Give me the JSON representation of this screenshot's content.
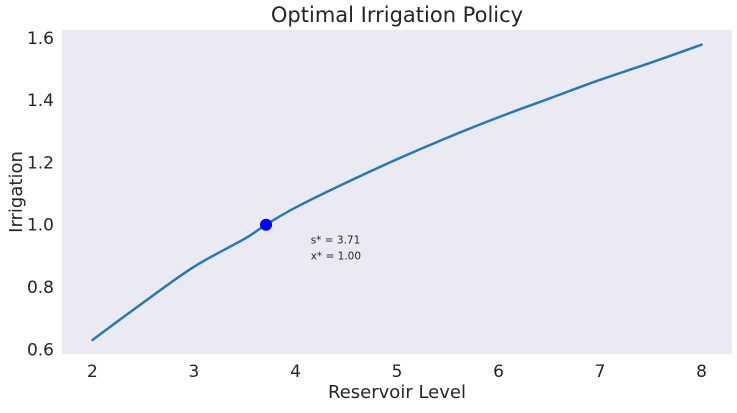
{
  "chart_data": {
    "type": "line",
    "title": "Optimal Irrigation Policy",
    "xlabel": "Reservoir Level",
    "ylabel": "Irrigation",
    "xlim": [
      1.7,
      8.3
    ],
    "ylim": [
      0.585,
      1.625
    ],
    "grid": false,
    "background_color": "#eaeaf2",
    "line_color": "#2878b5",
    "point_color": "#0000ff",
    "x_ticks": [
      2,
      3,
      4,
      5,
      6,
      7,
      8
    ],
    "x_tick_labels": [
      "2",
      "3",
      "4",
      "5",
      "6",
      "7",
      "8"
    ],
    "y_ticks": [
      0.6,
      0.8,
      1.0,
      1.2,
      1.4,
      1.6
    ],
    "y_tick_labels": [
      "0.6",
      "0.8",
      "1.0",
      "1.2",
      "1.4",
      "1.6"
    ],
    "series": [
      {
        "x": [
          2.0,
          2.5,
          3.0,
          3.5,
          3.71,
          4.0,
          4.5,
          5.0,
          5.5,
          6.0,
          6.5,
          7.0,
          7.5,
          8.0
        ],
        "y": [
          0.63,
          0.75,
          0.865,
          0.955,
          1.0,
          1.055,
          1.135,
          1.21,
          1.28,
          1.345,
          1.405,
          1.465,
          1.52,
          1.578
        ]
      }
    ],
    "highlight_point": {
      "x": 3.71,
      "y": 1.0
    },
    "annotation": {
      "x": 4.15,
      "y": 0.94,
      "line1": "s* = 3.71",
      "line2": "x* = 1.00"
    }
  }
}
